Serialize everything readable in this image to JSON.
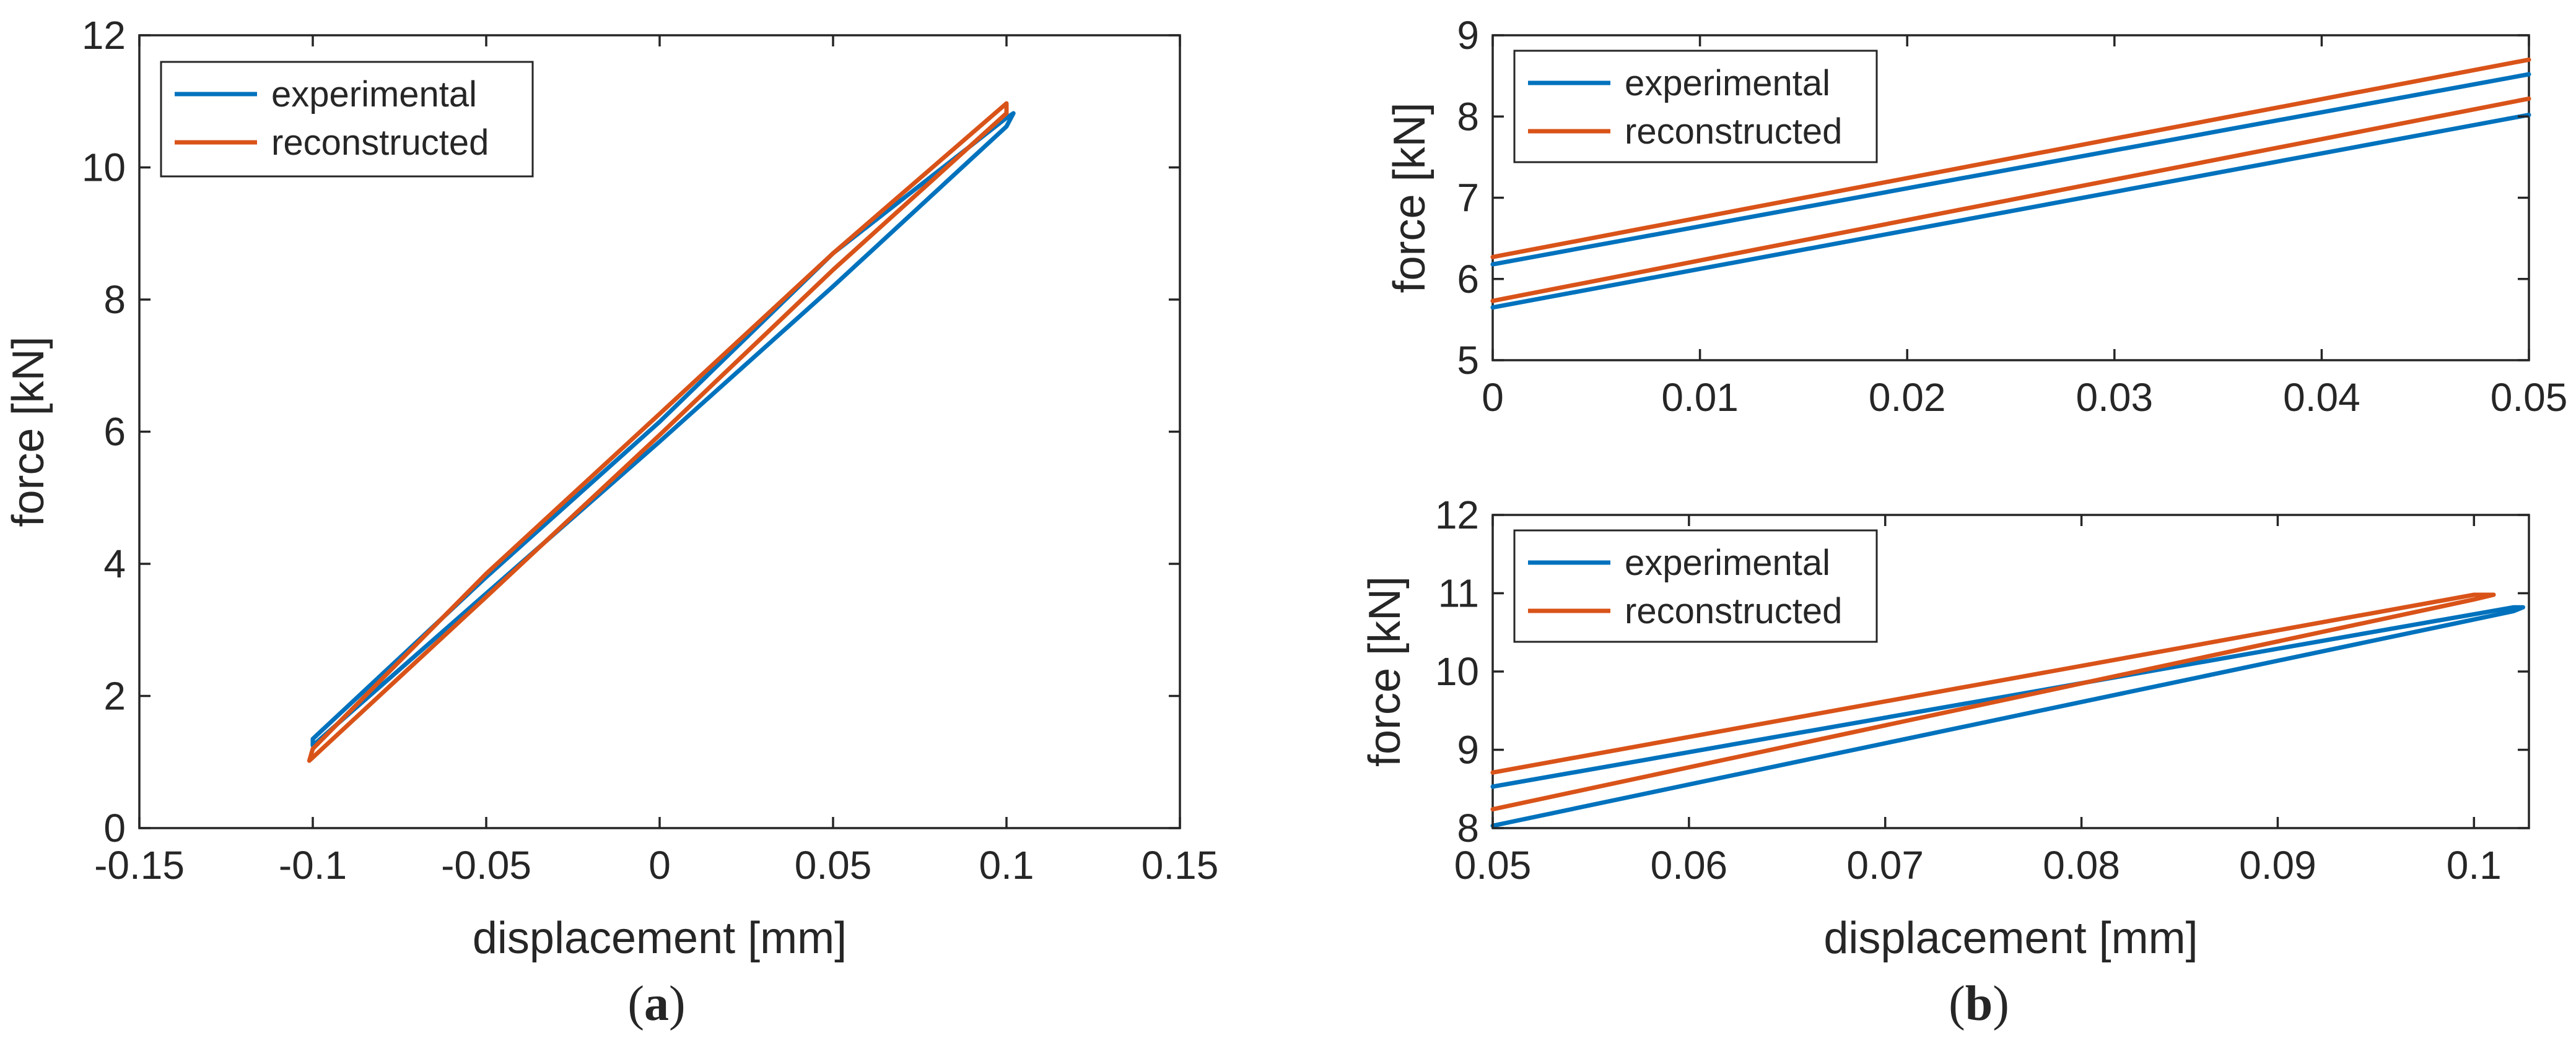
{
  "colors": {
    "experimental": "#0072BD",
    "reconstructed": "#D95319"
  },
  "captions": {
    "a": "(a)",
    "b": "(b)"
  },
  "chart_data": [
    {
      "id": "a",
      "type": "line",
      "title": "",
      "xlabel": "displacement [mm]",
      "ylabel": "force [kN]",
      "xlim": [
        -0.15,
        0.15
      ],
      "ylim": [
        0,
        12
      ],
      "xticks": [
        -0.15,
        -0.1,
        -0.05,
        0,
        0.05,
        0.1,
        0.15
      ],
      "xtick_labels": [
        "-0.15",
        "-0.1",
        "-0.05",
        "0",
        "0.05",
        "0.1",
        "0.15"
      ],
      "yticks": [
        0,
        2,
        4,
        6,
        8,
        10,
        12
      ],
      "ytick_labels": [
        "0",
        "2",
        "4",
        "6",
        "8",
        "10",
        "12"
      ],
      "grid": false,
      "legend": {
        "position": "top-left",
        "entries": [
          "experimental",
          "reconstructed"
        ]
      },
      "series": [
        {
          "name": "experimental",
          "x": [
            -0.1,
            -0.05,
            0,
            0.05,
            0.1,
            0.102,
            0.1,
            0.05,
            0,
            -0.05,
            -0.1,
            -0.1
          ],
          "y": [
            1.25,
            3.55,
            5.85,
            8.2,
            10.62,
            10.82,
            10.75,
            8.7,
            6.15,
            3.8,
            1.35,
            1.25
          ]
        },
        {
          "name": "reconstructed",
          "x": [
            -0.101,
            -0.05,
            0,
            0.05,
            0.1,
            0.1,
            0.1,
            0.05,
            0,
            -0.05,
            -0.1,
            -0.101
          ],
          "y": [
            1.02,
            3.5,
            5.95,
            8.45,
            10.82,
            10.97,
            10.97,
            8.7,
            6.27,
            3.85,
            1.2,
            1.02
          ]
        }
      ]
    },
    {
      "id": "b-top",
      "type": "line",
      "title": "",
      "xlabel": "",
      "ylabel": "force [kN]",
      "xlim": [
        0,
        0.05
      ],
      "ylim": [
        5,
        9
      ],
      "xticks": [
        0,
        0.01,
        0.02,
        0.03,
        0.04,
        0.05
      ],
      "xtick_labels": [
        "0",
        "0.01",
        "0.02",
        "0.03",
        "0.04",
        "0.05"
      ],
      "yticks": [
        5,
        6,
        7,
        8,
        9
      ],
      "ytick_labels": [
        "5",
        "6",
        "7",
        "8",
        "9"
      ],
      "grid": false,
      "legend": {
        "position": "top-left",
        "entries": [
          "experimental",
          "reconstructed"
        ]
      },
      "series": [
        {
          "name": "experimental",
          "x": [
            0,
            0.05
          ],
          "y": [
            5.65,
            8.02
          ]
        },
        {
          "name": "experimental",
          "x": [
            0,
            0.05
          ],
          "y": [
            6.18,
            8.52
          ]
        },
        {
          "name": "reconstructed",
          "x": [
            0,
            0.05
          ],
          "y": [
            5.73,
            8.22
          ]
        },
        {
          "name": "reconstructed",
          "x": [
            0,
            0.05
          ],
          "y": [
            6.27,
            8.7
          ]
        }
      ]
    },
    {
      "id": "b-bottom",
      "type": "line",
      "title": "",
      "xlabel": "displacement [mm]",
      "ylabel": "force [kN]",
      "xlim": [
        0.05,
        0.1028
      ],
      "ylim": [
        8,
        12
      ],
      "xticks": [
        0.05,
        0.06,
        0.07,
        0.08,
        0.09,
        0.1
      ],
      "xtick_labels": [
        "0.05",
        "0.06",
        "0.07",
        "0.08",
        "0.09",
        "0.1"
      ],
      "yticks": [
        8,
        9,
        10,
        11,
        12
      ],
      "ytick_labels": [
        "8",
        "9",
        "10",
        "11",
        "12"
      ],
      "grid": false,
      "legend": {
        "position": "top-left",
        "entries": [
          "experimental",
          "reconstructed"
        ]
      },
      "series": [
        {
          "name": "experimental",
          "x": [
            0.05,
            0.102,
            0.1025,
            0.102,
            0.05
          ],
          "y": [
            8.03,
            10.77,
            10.82,
            10.82,
            8.53
          ]
        },
        {
          "name": "reconstructed",
          "x": [
            0.05,
            0.1,
            0.101,
            0.1,
            0.05
          ],
          "y": [
            8.24,
            10.92,
            10.98,
            10.98,
            8.71
          ]
        }
      ]
    }
  ]
}
